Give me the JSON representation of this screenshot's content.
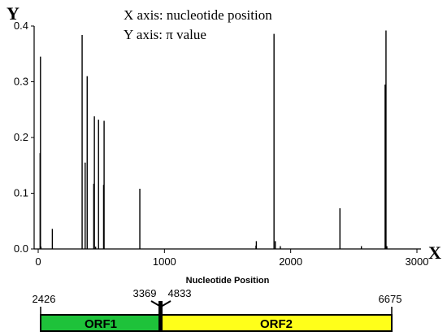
{
  "annotations": {
    "y_letter": "Y",
    "x_letter": "X",
    "x_note": "X axis: nucleotide position",
    "y_note": "Y axis: π value"
  },
  "chart_data": {
    "type": "bar",
    "title": "",
    "xlabel": "Nucleotide Position",
    "ylabel": "",
    "xlim": [
      0,
      3000
    ],
    "ylim": [
      0,
      0.4
    ],
    "x_ticks": [
      "0",
      "1000",
      "2000",
      "3000"
    ],
    "y_ticks": [
      "0.0",
      "0.1",
      "0.2",
      "0.3",
      "0.4"
    ],
    "grid": false,
    "x": [
      15,
      18,
      22,
      112,
      348,
      372,
      388,
      440,
      445,
      455,
      478,
      518,
      522,
      805,
      1725,
      1728,
      1868,
      1878,
      1918,
      2390,
      2560,
      2748,
      2755,
      2762
    ],
    "values": [
      0.172,
      0.345,
      0.004,
      0.036,
      0.384,
      0.155,
      0.31,
      0.117,
      0.238,
      0.004,
      0.232,
      0.115,
      0.23,
      0.108,
      0.006,
      0.014,
      0.386,
      0.014,
      0.005,
      0.073,
      0.005,
      0.295,
      0.392,
      0.005
    ]
  },
  "genome_map": {
    "start": "2426",
    "orf1_end": "3369",
    "orf2_start": "4833",
    "end": "6675",
    "orf1_label": "ORF1",
    "orf2_label": "ORF2",
    "orf1_color": "#1ec23a",
    "orf2_color": "#ffff1a"
  }
}
